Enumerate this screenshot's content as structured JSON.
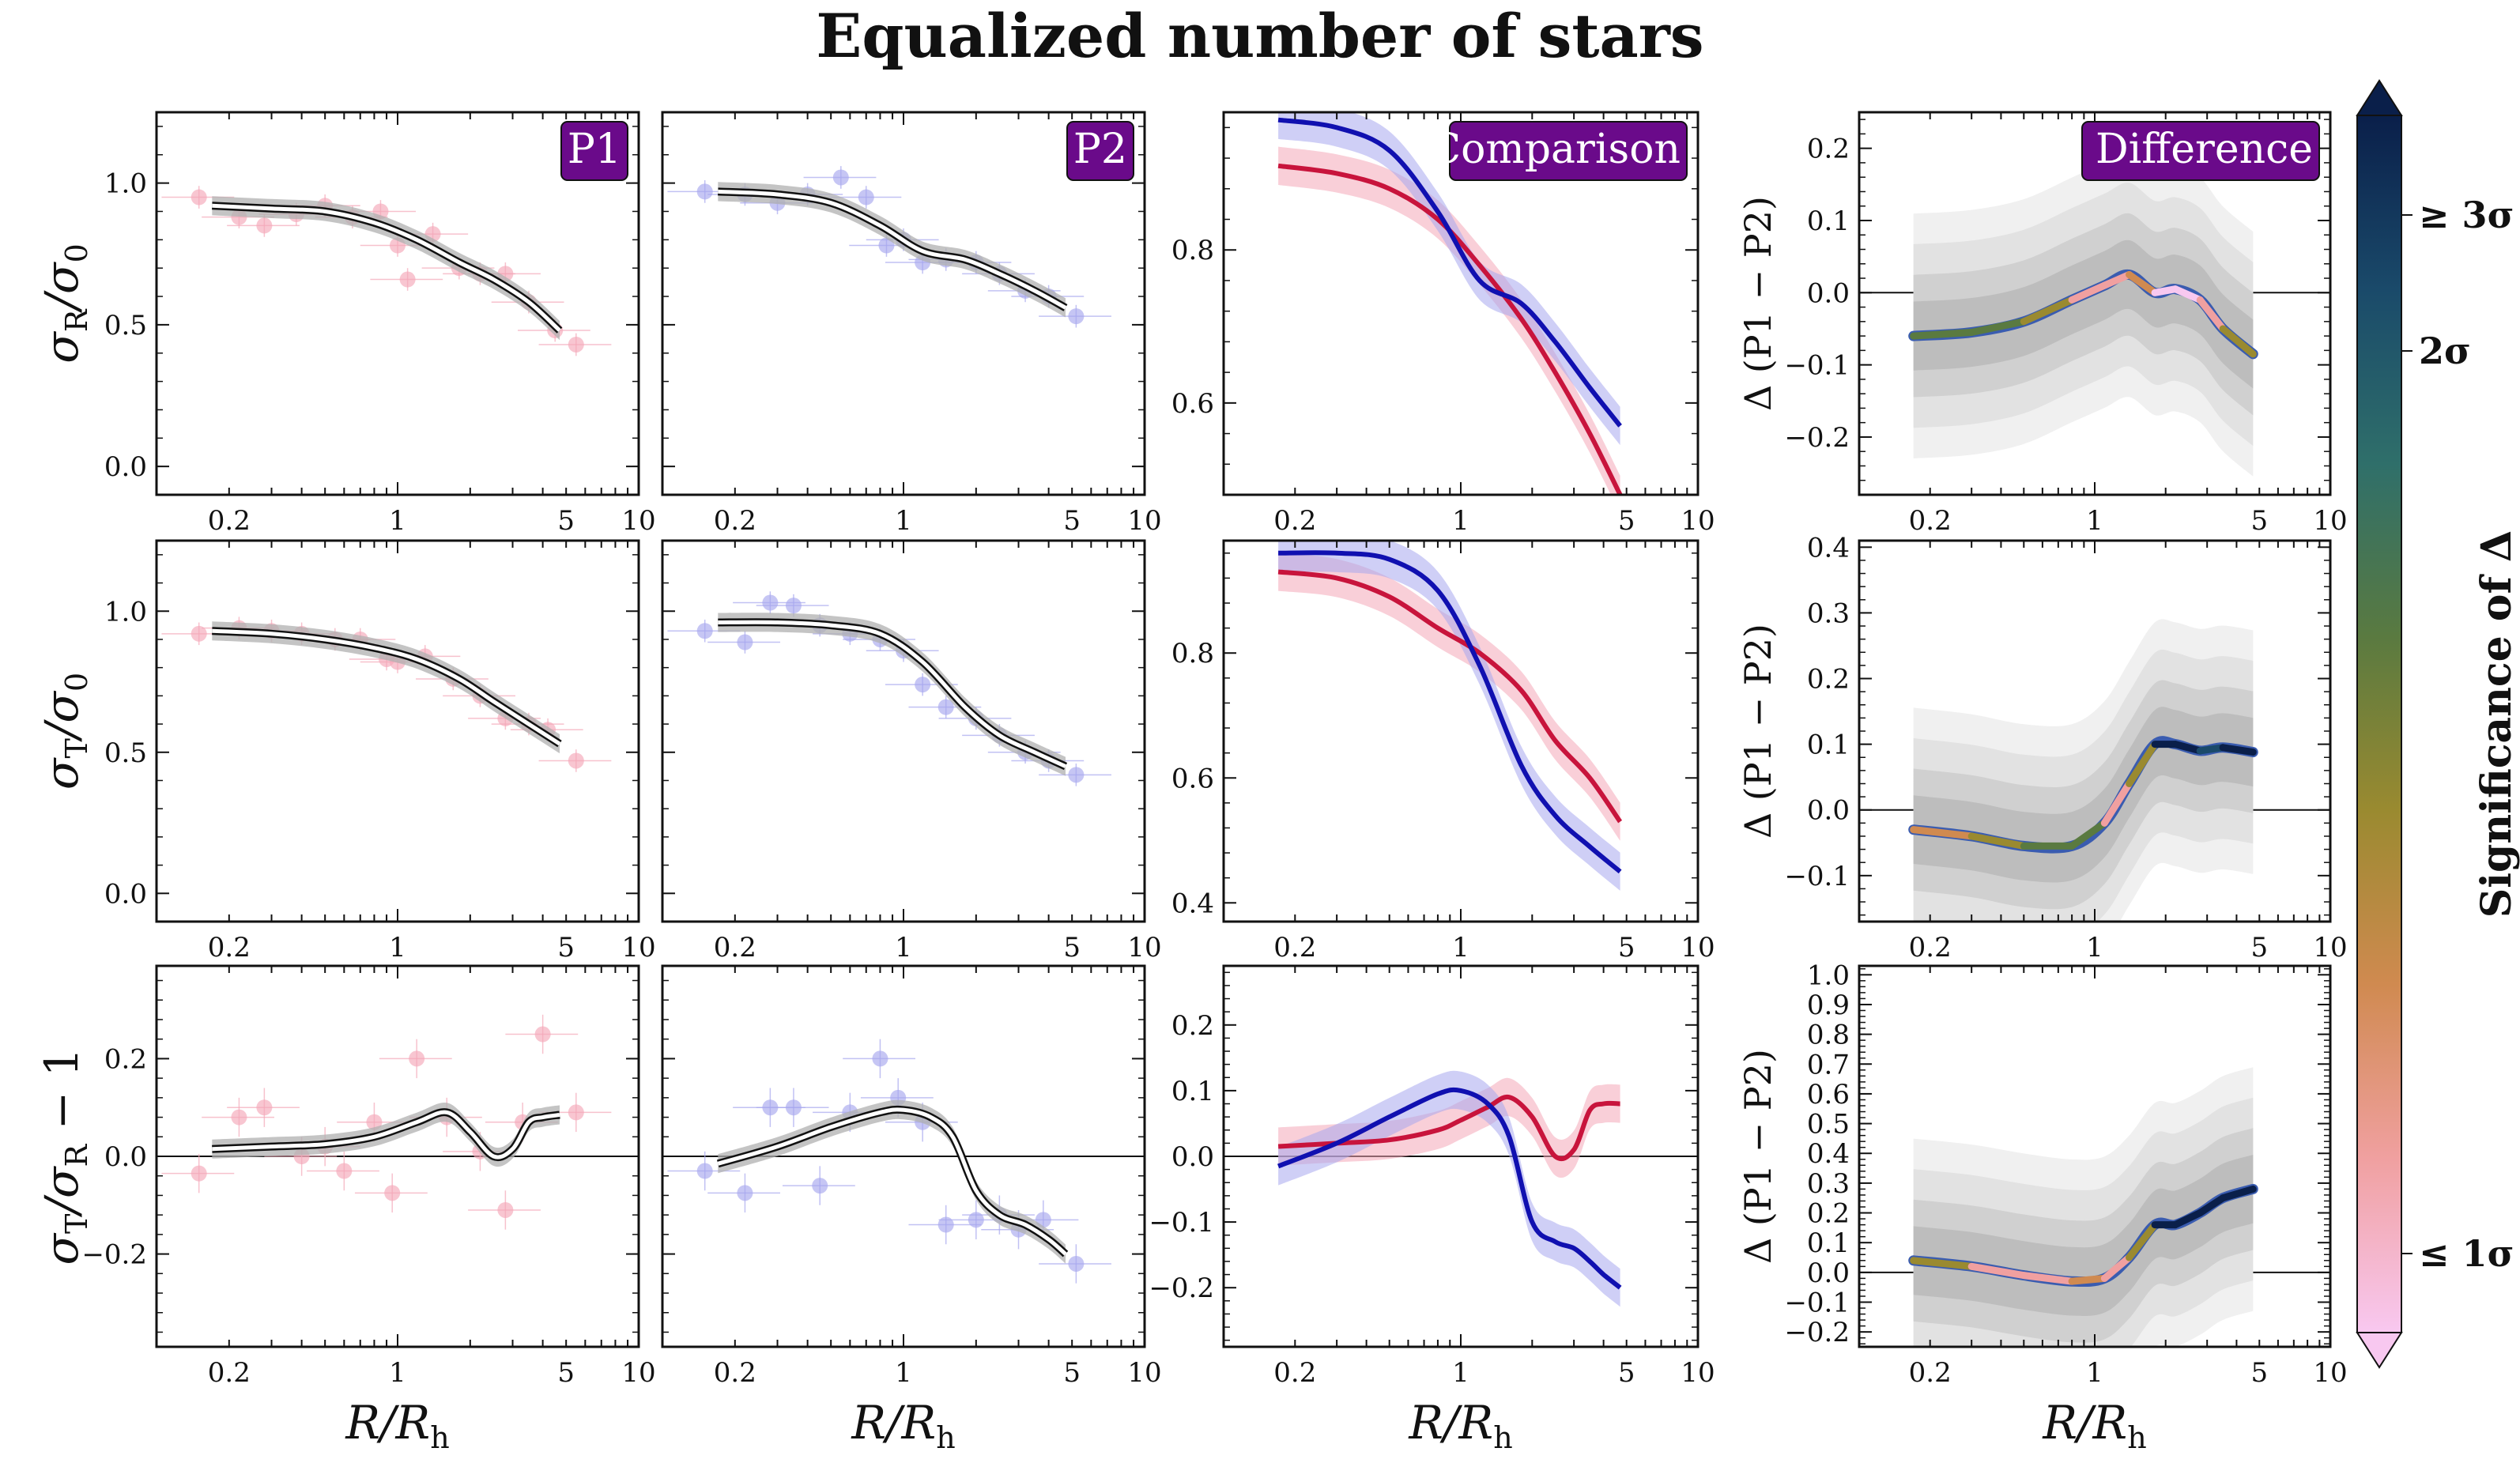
{
  "title": "Equalized number of stars",
  "colors": {
    "P1": "#c8143c",
    "P2": "#1010b0",
    "P1_points": "#f4a8b8",
    "P2_points": "#a8a8ee",
    "label_bg": "#6a0a8a"
  },
  "colorbar": {
    "label": "Significance of Δ",
    "ticks": [
      "≥ 3σ",
      "2σ",
      "≤ 1σ"
    ],
    "colors": [
      "#0a1f4a",
      "#1a4a6a",
      "#2f6f6a",
      "#5a7a40",
      "#9a8a30",
      "#d08a50",
      "#f0a0a0",
      "#f8c8f0"
    ]
  },
  "x_axis": {
    "label": "R/R",
    "label_subscript": "h",
    "scale": "log",
    "xlim": [
      0.1,
      10
    ],
    "tick_labels": [
      "0.2",
      "1",
      "5",
      "10"
    ],
    "tick_values": [
      0.2,
      1,
      5,
      10
    ]
  },
  "row_labels": [
    {
      "main": "σ",
      "sub": "R",
      "mid": "/σ",
      "sub2": "0",
      "tail": ""
    },
    {
      "main": "σ",
      "sub": "T",
      "mid": "/σ",
      "sub2": "0",
      "tail": ""
    },
    {
      "main": "σ",
      "sub": "T",
      "mid": "/σ",
      "sub2": "R",
      "tail": " − 1"
    }
  ],
  "diff_ylabel": "Δ (P1 − P2)",
  "panel_tags": [
    "P1",
    "P2",
    "Comparison",
    "Difference"
  ],
  "chart_data": [
    {
      "type": "line",
      "row": 0,
      "col": 0,
      "tag": "P1",
      "ylim": [
        -0.1,
        1.25
      ],
      "yticks": [
        0.0,
        0.5,
        1.0
      ],
      "ytick_labels": [
        "0.0",
        "0.5",
        "1.0"
      ],
      "x": [
        0.17,
        0.3,
        0.5,
        0.8,
        1.2,
        1.8,
        2.5,
        3.5,
        4.7
      ],
      "series": [
        {
          "name": "P1",
          "values": [
            0.92,
            0.91,
            0.9,
            0.86,
            0.8,
            0.72,
            0.66,
            0.58,
            0.48
          ]
        }
      ],
      "points": {
        "x": [
          0.15,
          0.22,
          0.28,
          0.38,
          0.5,
          0.65,
          0.85,
          1.0,
          1.1,
          1.4,
          1.8,
          2.2,
          2.8,
          3.5,
          4.5,
          5.5
        ],
        "y": [
          0.95,
          0.88,
          0.85,
          0.89,
          0.92,
          0.88,
          0.9,
          0.78,
          0.66,
          0.82,
          0.7,
          0.68,
          0.68,
          0.58,
          0.48,
          0.43
        ]
      }
    },
    {
      "type": "line",
      "row": 0,
      "col": 1,
      "tag": "P2",
      "ylim": [
        -0.1,
        1.25
      ],
      "yticks": [
        0.0,
        0.5,
        1.0
      ],
      "ytick_labels": [
        "",
        "",
        ""
      ],
      "x": [
        0.17,
        0.3,
        0.5,
        0.8,
        1.2,
        1.8,
        2.5,
        3.5,
        4.7
      ],
      "series": [
        {
          "name": "P2",
          "values": [
            0.97,
            0.96,
            0.93,
            0.85,
            0.76,
            0.73,
            0.68,
            0.62,
            0.56
          ]
        }
      ],
      "points": {
        "x": [
          0.15,
          0.22,
          0.3,
          0.4,
          0.55,
          0.7,
          0.85,
          1.0,
          1.2,
          1.5,
          2.0,
          2.5,
          3.2,
          4.0,
          5.2
        ],
        "y": [
          0.97,
          0.96,
          0.93,
          0.96,
          1.02,
          0.95,
          0.78,
          0.8,
          0.72,
          0.73,
          0.72,
          0.68,
          0.62,
          0.6,
          0.53
        ]
      }
    },
    {
      "type": "line",
      "row": 0,
      "col": 2,
      "tag": "Comparison",
      "ylim": [
        0.48,
        0.98
      ],
      "yticks": [
        0.6,
        0.8
      ],
      "ytick_labels": [
        "0.6",
        "0.8"
      ],
      "x": [
        0.17,
        0.3,
        0.5,
        0.8,
        1.2,
        1.8,
        2.5,
        3.5,
        4.7
      ],
      "series": [
        {
          "name": "P1",
          "values": [
            0.91,
            0.9,
            0.88,
            0.84,
            0.78,
            0.71,
            0.64,
            0.56,
            0.48
          ]
        },
        {
          "name": "P2",
          "values": [
            0.97,
            0.96,
            0.93,
            0.85,
            0.76,
            0.73,
            0.68,
            0.62,
            0.57
          ]
        }
      ]
    },
    {
      "type": "line",
      "row": 0,
      "col": 3,
      "tag": "Difference",
      "ylim": [
        -0.28,
        0.25
      ],
      "yticks": [
        -0.2,
        -0.1,
        0.0,
        0.1,
        0.2
      ],
      "ytick_labels": [
        "−0.2",
        "−0.1",
        "0.0",
        "0.1",
        "0.2"
      ],
      "x": [
        0.17,
        0.3,
        0.5,
        0.8,
        1.1,
        1.4,
        1.8,
        2.2,
        2.8,
        3.5,
        4.7
      ],
      "series": [
        {
          "name": "Δ",
          "values": [
            -0.06,
            -0.055,
            -0.04,
            -0.01,
            0.01,
            0.025,
            0.0,
            0.005,
            -0.01,
            -0.05,
            -0.085
          ]
        }
      ]
    },
    {
      "type": "line",
      "row": 1,
      "col": 0,
      "ylim": [
        -0.1,
        1.25
      ],
      "yticks": [
        0.0,
        0.5,
        1.0
      ],
      "ytick_labels": [
        "0.0",
        "0.5",
        "1.0"
      ],
      "x": [
        0.17,
        0.3,
        0.5,
        0.8,
        1.2,
        1.8,
        2.5,
        3.5,
        4.7
      ],
      "series": [
        {
          "name": "P1",
          "values": [
            0.93,
            0.92,
            0.9,
            0.87,
            0.83,
            0.76,
            0.68,
            0.6,
            0.53
          ]
        }
      ],
      "points": {
        "x": [
          0.15,
          0.22,
          0.3,
          0.4,
          0.55,
          0.7,
          0.9,
          1.0,
          1.3,
          1.7,
          2.2,
          2.8,
          3.5,
          4.2,
          5.5
        ],
        "y": [
          0.92,
          0.94,
          0.93,
          0.92,
          0.9,
          0.9,
          0.83,
          0.82,
          0.84,
          0.76,
          0.7,
          0.62,
          0.6,
          0.58,
          0.47
        ]
      }
    },
    {
      "type": "line",
      "row": 1,
      "col": 1,
      "ylim": [
        -0.1,
        1.25
      ],
      "yticks": [
        0.0,
        0.5,
        1.0
      ],
      "ytick_labels": [
        "",
        "",
        ""
      ],
      "x": [
        0.17,
        0.3,
        0.5,
        0.8,
        1.2,
        1.8,
        2.5,
        3.5,
        4.7
      ],
      "series": [
        {
          "name": "P2",
          "values": [
            0.96,
            0.96,
            0.95,
            0.92,
            0.82,
            0.66,
            0.56,
            0.5,
            0.45
          ]
        }
      ],
      "points": {
        "x": [
          0.15,
          0.22,
          0.28,
          0.35,
          0.45,
          0.6,
          0.8,
          1.0,
          1.2,
          1.5,
          2.0,
          2.5,
          3.2,
          4.0,
          5.2
        ],
        "y": [
          0.93,
          0.89,
          1.03,
          1.02,
          0.95,
          0.92,
          0.9,
          0.86,
          0.74,
          0.66,
          0.62,
          0.56,
          0.5,
          0.47,
          0.42
        ]
      }
    },
    {
      "type": "line",
      "row": 1,
      "col": 2,
      "ylim": [
        0.37,
        0.98
      ],
      "yticks": [
        0.4,
        0.6,
        0.8
      ],
      "ytick_labels": [
        "0.4",
        "0.6",
        "0.8"
      ],
      "x": [
        0.17,
        0.3,
        0.5,
        0.8,
        1.2,
        1.8,
        2.5,
        3.5,
        4.7
      ],
      "series": [
        {
          "name": "P1",
          "values": [
            0.93,
            0.92,
            0.89,
            0.84,
            0.8,
            0.74,
            0.66,
            0.6,
            0.53
          ]
        },
        {
          "name": "P2",
          "values": [
            0.96,
            0.96,
            0.95,
            0.9,
            0.78,
            0.62,
            0.54,
            0.49,
            0.45
          ]
        }
      ]
    },
    {
      "type": "line",
      "row": 1,
      "col": 3,
      "ylim": [
        -0.17,
        0.41
      ],
      "yticks": [
        -0.1,
        0.0,
        0.1,
        0.2,
        0.3,
        0.4
      ],
      "ytick_labels": [
        "−0.1",
        "0.0",
        "0.1",
        "0.2",
        "0.3",
        "0.4"
      ],
      "x": [
        0.17,
        0.3,
        0.5,
        0.8,
        1.1,
        1.4,
        1.8,
        2.2,
        2.8,
        3.5,
        4.7
      ],
      "series": [
        {
          "name": "Δ",
          "values": [
            -0.03,
            -0.04,
            -0.055,
            -0.055,
            -0.02,
            0.04,
            0.1,
            0.1,
            0.09,
            0.095,
            0.088
          ]
        }
      ]
    },
    {
      "type": "line",
      "row": 2,
      "col": 0,
      "ylim": [
        -0.39,
        0.39
      ],
      "yticks": [
        -0.2,
        0.0,
        0.2
      ],
      "ytick_labels": [
        "−0.2",
        "0.0",
        "0.2"
      ],
      "x": [
        0.17,
        0.3,
        0.5,
        0.8,
        1.2,
        1.6,
        2.0,
        2.5,
        3.0,
        3.5,
        4.0,
        4.7
      ],
      "series": [
        {
          "name": "P1",
          "values": [
            0.015,
            0.02,
            0.025,
            0.04,
            0.07,
            0.09,
            0.05,
            0.0,
            0.015,
            0.07,
            0.08,
            0.085
          ]
        }
      ],
      "points": {
        "x": [
          0.15,
          0.22,
          0.28,
          0.4,
          0.5,
          0.6,
          0.8,
          0.95,
          1.2,
          1.6,
          2.2,
          2.8,
          3.3,
          4.0,
          5.5
        ],
        "y": [
          -0.035,
          0.08,
          0.1,
          0.0,
          0.02,
          -0.03,
          0.07,
          -0.075,
          0.2,
          0.08,
          0.01,
          -0.11,
          0.07,
          0.25,
          0.09
        ]
      }
    },
    {
      "type": "line",
      "row": 2,
      "col": 1,
      "ylim": [
        -0.39,
        0.39
      ],
      "yticks": [
        -0.2,
        0.0,
        0.2
      ],
      "ytick_labels": [
        "",
        "",
        ""
      ],
      "x": [
        0.17,
        0.3,
        0.5,
        0.8,
        1.0,
        1.3,
        1.6,
        2.0,
        2.5,
        3.2,
        4.0,
        4.7
      ],
      "series": [
        {
          "name": "P2",
          "values": [
            -0.015,
            0.02,
            0.06,
            0.09,
            0.095,
            0.08,
            0.04,
            -0.07,
            -0.12,
            -0.14,
            -0.17,
            -0.2
          ]
        }
      ],
      "points": {
        "x": [
          0.15,
          0.22,
          0.28,
          0.35,
          0.45,
          0.6,
          0.8,
          0.95,
          1.2,
          1.5,
          2.0,
          2.5,
          3.0,
          3.8,
          5.2
        ],
        "y": [
          -0.03,
          -0.075,
          0.1,
          0.1,
          -0.06,
          0.09,
          0.2,
          0.12,
          0.07,
          -0.14,
          -0.13,
          -0.12,
          -0.15,
          -0.13,
          -0.22
        ]
      }
    },
    {
      "type": "line",
      "row": 2,
      "col": 2,
      "ylim": [
        -0.29,
        0.29
      ],
      "yticks": [
        -0.2,
        -0.1,
        0.0,
        0.1,
        0.2
      ],
      "ytick_labels": [
        "−0.2",
        "−0.1",
        "0.0",
        "0.1",
        "0.2"
      ],
      "x": [
        0.17,
        0.3,
        0.5,
        0.8,
        1.0,
        1.3,
        1.6,
        2.0,
        2.5,
        3.0,
        3.5,
        4.0,
        4.7
      ],
      "series": [
        {
          "name": "P1",
          "values": [
            0.015,
            0.02,
            0.025,
            0.04,
            0.055,
            0.075,
            0.09,
            0.06,
            0.0,
            0.01,
            0.07,
            0.08,
            0.08
          ]
        },
        {
          "name": "P2",
          "values": [
            -0.015,
            0.02,
            0.06,
            0.095,
            0.1,
            0.08,
            0.03,
            -0.1,
            -0.13,
            -0.14,
            -0.16,
            -0.18,
            -0.2
          ]
        }
      ]
    },
    {
      "type": "line",
      "row": 2,
      "col": 3,
      "ylim": [
        -0.25,
        1.03
      ],
      "yticks": [
        -0.2,
        -0.1,
        0.0,
        0.1,
        0.2,
        0.3,
        0.4,
        0.5,
        0.6,
        0.7,
        0.8,
        0.9,
        1.0
      ],
      "ytick_labels": [
        "−0.2",
        "−0.1",
        "0.0",
        "0.1",
        "0.2",
        "0.3",
        "0.4",
        "0.5",
        "0.6",
        "0.7",
        "0.8",
        "0.9",
        "1.0"
      ],
      "x": [
        0.17,
        0.3,
        0.5,
        0.8,
        1.1,
        1.4,
        1.8,
        2.2,
        2.8,
        3.5,
        4.7
      ],
      "series": [
        {
          "name": "Δ",
          "values": [
            0.04,
            0.02,
            -0.01,
            -0.03,
            -0.02,
            0.05,
            0.16,
            0.16,
            0.2,
            0.25,
            0.28
          ]
        }
      ]
    }
  ]
}
